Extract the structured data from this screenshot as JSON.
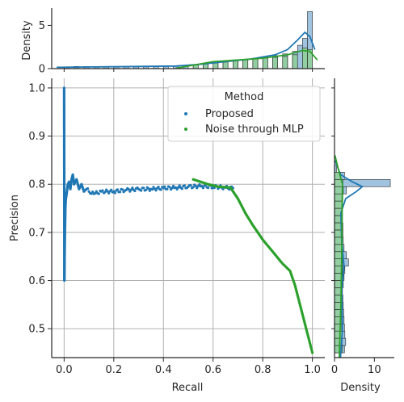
{
  "colors": {
    "proposed": "#1f77b4",
    "noise": "#2ca02c",
    "proposed_fill": "#8fb8d9",
    "noise_fill": "#8fd18f",
    "grid": "#b0b0b0",
    "axis": "#262626"
  },
  "chart_data": {
    "type": "scatter",
    "joint": {
      "xlabel": "Recall",
      "ylabel": "Precision",
      "xlim": [
        -0.05,
        1.05
      ],
      "ylim": [
        0.44,
        1.02
      ],
      "xticks": [
        "0.0",
        "0.2",
        "0.4",
        "0.6",
        "0.8",
        "1.0"
      ],
      "yticks": [
        "0.5",
        "0.6",
        "0.7",
        "0.8",
        "0.9",
        "1.0"
      ],
      "grid": true,
      "legend": {
        "title": "Method",
        "placement": "top-right",
        "entries": [
          "Proposed",
          "Noise through MLP"
        ]
      },
      "series": [
        {
          "name": "Proposed",
          "color": "#1f77b4",
          "points": [
            [
              0.0,
              1.0
            ],
            [
              0.001,
              0.6
            ],
            [
              0.002,
              0.65
            ],
            [
              0.003,
              0.69
            ],
            [
              0.004,
              0.72
            ],
            [
              0.005,
              0.75
            ],
            [
              0.007,
              0.77
            ],
            [
              0.01,
              0.78
            ],
            [
              0.015,
              0.8
            ],
            [
              0.02,
              0.805
            ],
            [
              0.025,
              0.79
            ],
            [
              0.03,
              0.81
            ],
            [
              0.035,
              0.82
            ],
            [
              0.04,
              0.8
            ],
            [
              0.05,
              0.81
            ],
            [
              0.06,
              0.79
            ],
            [
              0.07,
              0.8
            ],
            [
              0.08,
              0.785
            ],
            [
              0.09,
              0.79
            ],
            [
              0.1,
              0.785
            ],
            [
              0.12,
              0.78
            ],
            [
              0.15,
              0.785
            ],
            [
              0.2,
              0.785
            ],
            [
              0.25,
              0.788
            ],
            [
              0.3,
              0.79
            ],
            [
              0.35,
              0.79
            ],
            [
              0.4,
              0.792
            ],
            [
              0.45,
              0.793
            ],
            [
              0.5,
              0.795
            ],
            [
              0.55,
              0.796
            ],
            [
              0.6,
              0.795
            ],
            [
              0.65,
              0.793
            ],
            [
              0.68,
              0.792
            ]
          ]
        },
        {
          "name": "Noise through MLP",
          "color": "#2ca02c",
          "points": [
            [
              0.52,
              0.81
            ],
            [
              0.55,
              0.805
            ],
            [
              0.58,
              0.8
            ],
            [
              0.62,
              0.795
            ],
            [
              0.67,
              0.793
            ],
            [
              0.7,
              0.77
            ],
            [
              0.73,
              0.74
            ],
            [
              0.76,
              0.715
            ],
            [
              0.8,
              0.685
            ],
            [
              0.84,
              0.66
            ],
            [
              0.88,
              0.635
            ],
            [
              0.91,
              0.62
            ],
            [
              0.93,
              0.59
            ],
            [
              0.95,
              0.55
            ],
            [
              0.97,
              0.51
            ],
            [
              0.99,
              0.47
            ],
            [
              1.0,
              0.45
            ]
          ]
        }
      ]
    },
    "top_marginal": {
      "ylabel": "Density",
      "ylim": [
        0,
        7
      ],
      "yticks": [
        "0",
        "5"
      ],
      "proposed_bins": [
        [
          0.0,
          0.2
        ],
        [
          0.04,
          0.25
        ],
        [
          0.08,
          0.25
        ],
        [
          0.12,
          0.25
        ],
        [
          0.16,
          0.25
        ],
        [
          0.2,
          0.25
        ],
        [
          0.24,
          0.25
        ],
        [
          0.28,
          0.25
        ],
        [
          0.32,
          0.25
        ],
        [
          0.36,
          0.25
        ],
        [
          0.4,
          0.25
        ],
        [
          0.44,
          0.3
        ],
        [
          0.48,
          0.35
        ],
        [
          0.52,
          0.4
        ],
        [
          0.56,
          0.5
        ],
        [
          0.6,
          0.6
        ],
        [
          0.64,
          0.7
        ],
        [
          0.68,
          0.9
        ],
        [
          0.72,
          1.0
        ],
        [
          0.76,
          1.2
        ],
        [
          0.8,
          1.4
        ],
        [
          0.84,
          1.5
        ],
        [
          0.88,
          1.7
        ],
        [
          0.92,
          2.0
        ],
        [
          0.94,
          2.7
        ],
        [
          0.96,
          3.5
        ],
        [
          0.98,
          6.6
        ]
      ],
      "noise_bins": [
        [
          0.52,
          0.4
        ],
        [
          0.56,
          0.6
        ],
        [
          0.6,
          0.75
        ],
        [
          0.64,
          0.9
        ],
        [
          0.68,
          1.0
        ],
        [
          0.72,
          1.05
        ],
        [
          0.76,
          1.1
        ],
        [
          0.8,
          1.2
        ],
        [
          0.84,
          1.3
        ],
        [
          0.88,
          1.4
        ],
        [
          0.92,
          1.6
        ],
        [
          0.96,
          2.4
        ],
        [
          0.98,
          2.2
        ]
      ],
      "proposed_kde": [
        [
          -0.03,
          0.15
        ],
        [
          0.1,
          0.2
        ],
        [
          0.3,
          0.25
        ],
        [
          0.45,
          0.3
        ],
        [
          0.55,
          0.5
        ],
        [
          0.65,
          0.8
        ],
        [
          0.75,
          1.1
        ],
        [
          0.85,
          1.6
        ],
        [
          0.9,
          2.2
        ],
        [
          0.94,
          3.3
        ],
        [
          0.97,
          4.2
        ],
        [
          0.99,
          3.7
        ],
        [
          1.01,
          2.2
        ]
      ],
      "noise_kde": [
        [
          0.45,
          0.05
        ],
        [
          0.52,
          0.4
        ],
        [
          0.6,
          0.8
        ],
        [
          0.7,
          1.0
        ],
        [
          0.8,
          1.2
        ],
        [
          0.9,
          1.6
        ],
        [
          0.96,
          2.1
        ],
        [
          0.99,
          2.0
        ],
        [
          1.02,
          1.0
        ]
      ]
    },
    "right_marginal": {
      "xlabel": "Density",
      "xlim": [
        0,
        15
      ],
      "xticks": [
        "0",
        "10"
      ],
      "proposed_bins": [
        [
          0.45,
          2.5
        ],
        [
          0.465,
          2.8
        ],
        [
          0.48,
          2.6
        ],
        [
          0.495,
          2.5
        ],
        [
          0.51,
          2.4
        ],
        [
          0.525,
          2.3
        ],
        [
          0.54,
          2.2
        ],
        [
          0.555,
          2.1
        ],
        [
          0.57,
          2.0
        ],
        [
          0.585,
          2.2
        ],
        [
          0.6,
          2.4
        ],
        [
          0.615,
          2.6
        ],
        [
          0.63,
          3.5
        ],
        [
          0.645,
          3.0
        ],
        [
          0.66,
          2.4
        ],
        [
          0.675,
          2.2
        ],
        [
          0.69,
          2.1
        ],
        [
          0.705,
          2.1
        ],
        [
          0.72,
          2.0
        ],
        [
          0.735,
          2.0
        ],
        [
          0.75,
          2.0
        ],
        [
          0.765,
          2.1
        ],
        [
          0.78,
          3.0
        ],
        [
          0.795,
          14.0
        ],
        [
          0.81,
          2.5
        ],
        [
          0.825,
          0.5
        ]
      ],
      "noise_bins": [
        [
          0.45,
          2.0
        ],
        [
          0.465,
          1.9
        ],
        [
          0.48,
          1.9
        ],
        [
          0.495,
          1.8
        ],
        [
          0.51,
          1.8
        ],
        [
          0.525,
          1.8
        ],
        [
          0.54,
          1.8
        ],
        [
          0.555,
          1.8
        ],
        [
          0.57,
          1.8
        ],
        [
          0.585,
          1.9
        ],
        [
          0.6,
          2.0
        ],
        [
          0.615,
          2.0
        ],
        [
          0.63,
          2.0
        ],
        [
          0.645,
          1.9
        ],
        [
          0.66,
          1.9
        ],
        [
          0.675,
          1.9
        ],
        [
          0.69,
          1.9
        ],
        [
          0.705,
          1.9
        ],
        [
          0.72,
          1.9
        ],
        [
          0.735,
          1.9
        ],
        [
          0.75,
          1.9
        ],
        [
          0.765,
          2.0
        ],
        [
          0.78,
          2.2
        ],
        [
          0.795,
          2.1
        ],
        [
          0.81,
          1.5
        ]
      ],
      "proposed_kde": [
        [
          0.44,
          1.5
        ],
        [
          0.5,
          2.0
        ],
        [
          0.58,
          1.8
        ],
        [
          0.63,
          2.4
        ],
        [
          0.68,
          1.8
        ],
        [
          0.74,
          1.6
        ],
        [
          0.77,
          2.8
        ],
        [
          0.785,
          5.5
        ],
        [
          0.795,
          7.0
        ],
        [
          0.805,
          4.5
        ],
        [
          0.82,
          1.5
        ],
        [
          0.85,
          0.1
        ]
      ],
      "noise_kde": [
        [
          0.44,
          1.2
        ],
        [
          0.55,
          1.6
        ],
        [
          0.65,
          1.8
        ],
        [
          0.75,
          1.9
        ],
        [
          0.8,
          2.0
        ],
        [
          0.83,
          1.0
        ],
        [
          0.86,
          0.1
        ]
      ]
    }
  }
}
